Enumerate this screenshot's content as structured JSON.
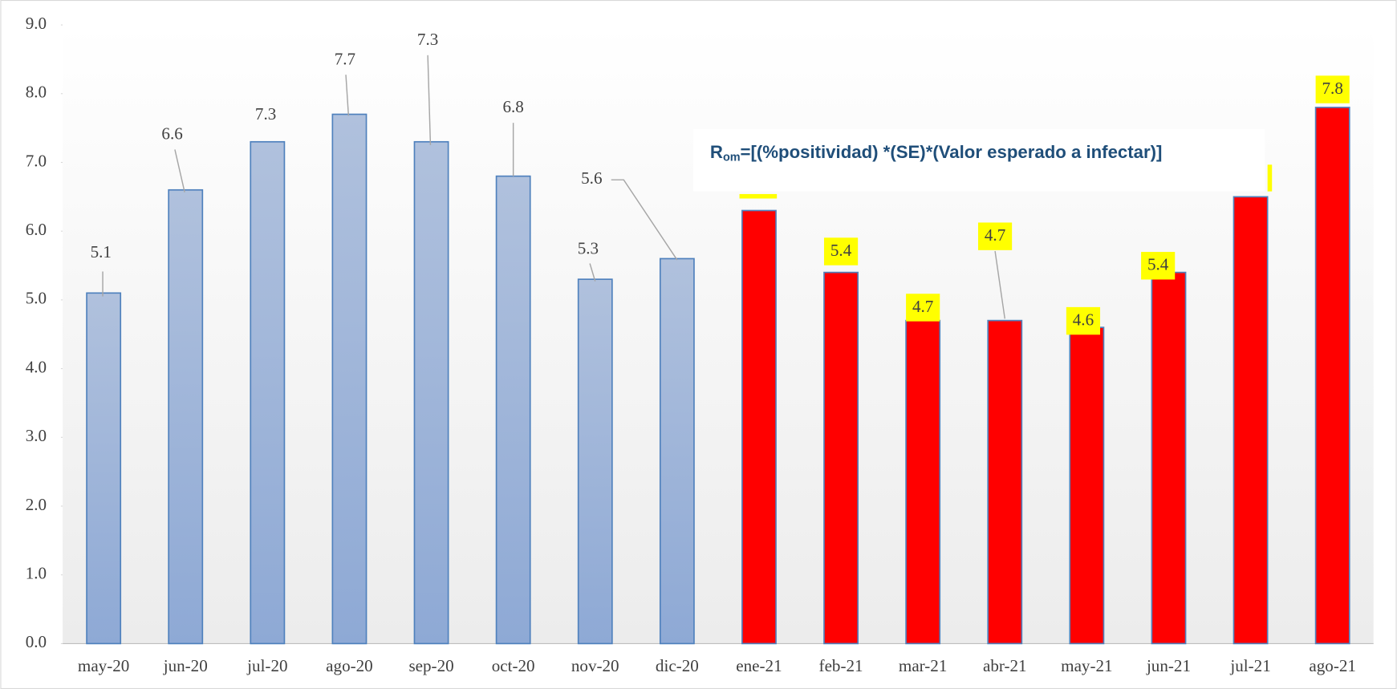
{
  "chart_data": {
    "type": "bar",
    "categories": [
      "may-20",
      "jun-20",
      "jul-20",
      "ago-20",
      "sep-20",
      "oct-20",
      "nov-20",
      "dic-20",
      "ene-21",
      "feb-21",
      "mar-21",
      "abr-21",
      "may-21",
      "jun-21",
      "jul-21",
      "ago-21"
    ],
    "values": [
      5.1,
      6.6,
      7.3,
      7.7,
      7.3,
      6.8,
      5.3,
      5.6,
      6.3,
      5.4,
      4.7,
      4.7,
      4.6,
      5.4,
      6.5,
      7.8
    ],
    "value_labels": [
      "5.1",
      "6.6",
      "7.3",
      "7.7",
      "7.3",
      "6.8",
      "5.3",
      "5.6",
      null,
      "5.4",
      "4.7",
      "4.7",
      "4.6",
      "5.4",
      null,
      "7.8"
    ],
    "colors": [
      "#9fb4da",
      "#9fb4da",
      "#9fb4da",
      "#9fb4da",
      "#9fb4da",
      "#9fb4da",
      "#9fb4da",
      "#9fb4da",
      "#ff0000",
      "#ff0000",
      "#ff0000",
      "#ff0000",
      "#ff0000",
      "#ff0000",
      "#ff0000",
      "#ff0000"
    ],
    "ylim": [
      0,
      9
    ],
    "yticks": [
      {
        "value": 0,
        "label": "0.0"
      },
      {
        "value": 1,
        "label": "1.0"
      },
      {
        "value": 2,
        "label": "2.0"
      },
      {
        "value": 3,
        "label": "3.0"
      },
      {
        "value": 4,
        "label": "4.0"
      },
      {
        "value": 5,
        "label": "5.0"
      },
      {
        "value": 6,
        "label": "6.0"
      },
      {
        "value": 7,
        "label": "7.0"
      },
      {
        "value": 8,
        "label": "8.0"
      },
      {
        "value": 9,
        "label": "9.0"
      }
    ],
    "annotation": {
      "main": "R",
      "sub": "om",
      "rest": "=[(%positividad) *(SE)*(Valor esperado a infectar)]"
    }
  }
}
